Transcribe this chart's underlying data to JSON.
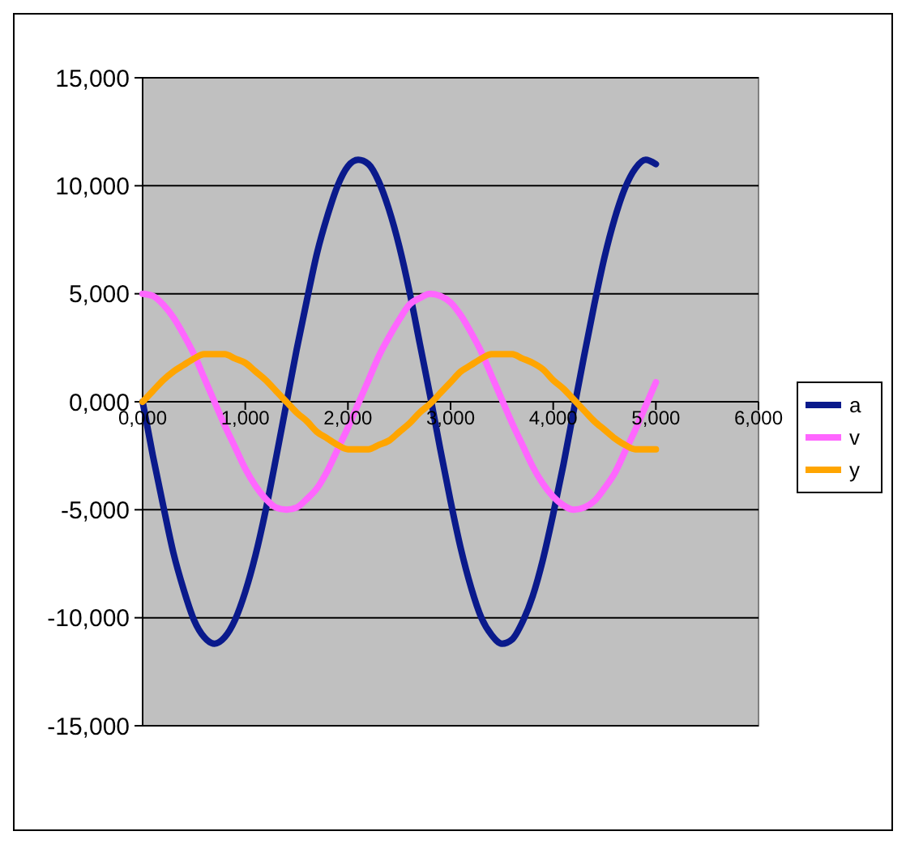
{
  "chart_data": {
    "type": "line",
    "x": [
      0,
      0.1,
      0.2,
      0.3,
      0.4,
      0.5,
      0.6,
      0.7,
      0.8,
      0.9,
      1,
      1.1,
      1.2,
      1.3,
      1.4,
      1.5,
      1.6,
      1.7,
      1.8,
      1.9,
      2,
      2.1,
      2.2,
      2.3,
      2.4,
      2.5,
      2.6,
      2.7,
      2.8,
      2.9,
      3,
      3.1,
      3.2,
      3.3,
      3.4,
      3.5,
      3.6,
      3.7,
      3.8,
      3.9,
      4,
      4.1,
      4.2,
      4.3,
      4.4,
      4.5,
      4.6,
      4.7,
      4.8,
      4.9,
      5
    ],
    "series": [
      {
        "name": "a",
        "color": "#0a1a8c",
        "values": [
          0,
          -2.5,
          -4.8,
          -7.0,
          -8.7,
          -10.1,
          -10.9,
          -11.2,
          -10.9,
          -10.1,
          -8.8,
          -7.1,
          -5.0,
          -2.6,
          -0.1,
          2.4,
          4.7,
          6.9,
          8.6,
          10.0,
          10.9,
          11.2,
          11.0,
          10.2,
          8.9,
          7.2,
          5.1,
          2.7,
          0.3,
          -2.2,
          -4.6,
          -6.8,
          -8.6,
          -10.0,
          -10.8,
          -11.2,
          -11.0,
          -10.2,
          -9.0,
          -7.3,
          -5.2,
          -2.9,
          -0.4,
          2.1,
          4.5,
          6.7,
          8.5,
          9.9,
          10.8,
          11.2,
          11.0
        ]
      },
      {
        "name": "v",
        "color": "#ff66ff",
        "values": [
          5.0,
          4.9,
          4.5,
          3.9,
          3.1,
          2.2,
          1.1,
          0.0,
          -1.1,
          -2.1,
          -3.1,
          -3.9,
          -4.5,
          -4.9,
          -5.0,
          -4.9,
          -4.5,
          -4.0,
          -3.2,
          -2.2,
          -1.2,
          -0.1,
          1.0,
          2.1,
          3.0,
          3.8,
          4.5,
          4.8,
          5.0,
          4.9,
          4.6,
          4.0,
          3.2,
          2.3,
          1.2,
          0.1,
          -1.0,
          -2.0,
          -3.0,
          -3.8,
          -4.4,
          -4.8,
          -5.0,
          -4.9,
          -4.6,
          -4.0,
          -3.3,
          -2.3,
          -1.3,
          -0.2,
          0.9
        ]
      },
      {
        "name": "y",
        "color": "#ffa500",
        "values": [
          0,
          0.5,
          1.0,
          1.4,
          1.7,
          2.0,
          2.2,
          2.2,
          2.2,
          2.0,
          1.8,
          1.4,
          1.0,
          0.5,
          0.0,
          -0.5,
          -0.9,
          -1.4,
          -1.7,
          -2.0,
          -2.2,
          -2.2,
          -2.2,
          -2.0,
          -1.8,
          -1.4,
          -1.0,
          -0.5,
          -0.1,
          0.4,
          0.9,
          1.4,
          1.7,
          2.0,
          2.2,
          2.2,
          2.2,
          2.0,
          1.8,
          1.5,
          1.0,
          0.6,
          0.1,
          -0.4,
          -0.9,
          -1.3,
          -1.7,
          -2.0,
          -2.2,
          -2.2,
          -2.2
        ]
      }
    ],
    "xlim": [
      0,
      6
    ],
    "xticks": [
      {
        "value": 0,
        "label": "0,000"
      },
      {
        "value": 1,
        "label": "1,000"
      },
      {
        "value": 2,
        "label": "2,000"
      },
      {
        "value": 3,
        "label": "3,000"
      },
      {
        "value": 4,
        "label": "4,000"
      },
      {
        "value": 5,
        "label": "5,000"
      },
      {
        "value": 6,
        "label": "6,000"
      }
    ],
    "ylim": [
      -15,
      15
    ],
    "yticks": [
      {
        "value": -15,
        "label": "-15,000"
      },
      {
        "value": -10,
        "label": "-10,000"
      },
      {
        "value": -5,
        "label": "-5,000"
      },
      {
        "value": 0,
        "label": "0,000"
      },
      {
        "value": 5,
        "label": "5,000"
      },
      {
        "value": 10,
        "label": "10,000"
      },
      {
        "value": 15,
        "label": "15,000"
      }
    ],
    "grid": "y",
    "legend": "right",
    "marker": "none",
    "line_style": "solid"
  }
}
